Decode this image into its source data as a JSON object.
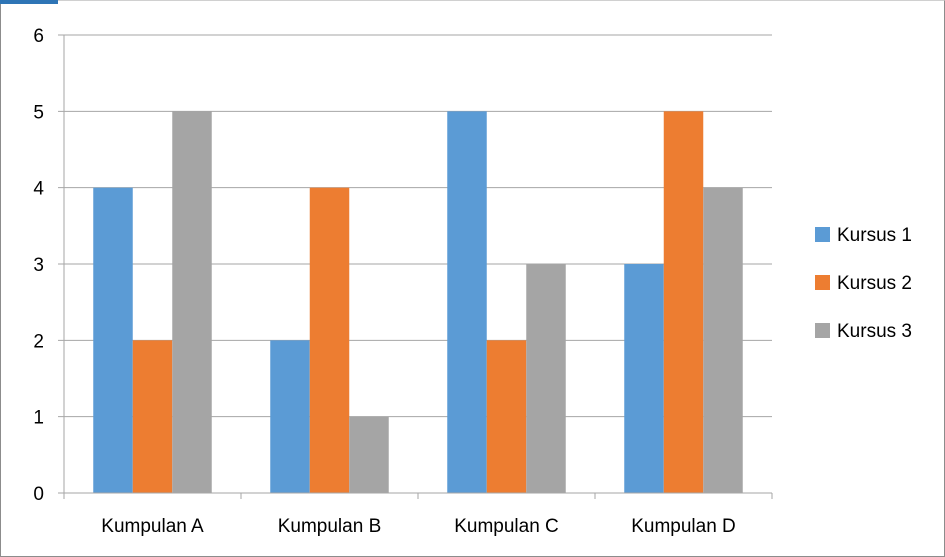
{
  "chart_data": {
    "type": "bar",
    "title": "",
    "xlabel": "",
    "ylabel": "",
    "categories": [
      "Kumpulan A",
      "Kumpulan B",
      "Kumpulan C",
      "Kumpulan D"
    ],
    "series": [
      {
        "name": "Kursus 1",
        "color": "#5b9bd5",
        "values": [
          4,
          2,
          5,
          3
        ]
      },
      {
        "name": "Kursus 2",
        "color": "#ed7d31",
        "values": [
          2,
          4,
          2,
          5
        ]
      },
      {
        "name": "Kursus 3",
        "color": "#a5a5a5",
        "values": [
          5,
          1,
          3,
          4
        ]
      }
    ],
    "ylim": [
      0,
      6
    ],
    "yticks": [
      0,
      1,
      2,
      3,
      4,
      5,
      6
    ],
    "grid": true,
    "legend_position": "right"
  }
}
